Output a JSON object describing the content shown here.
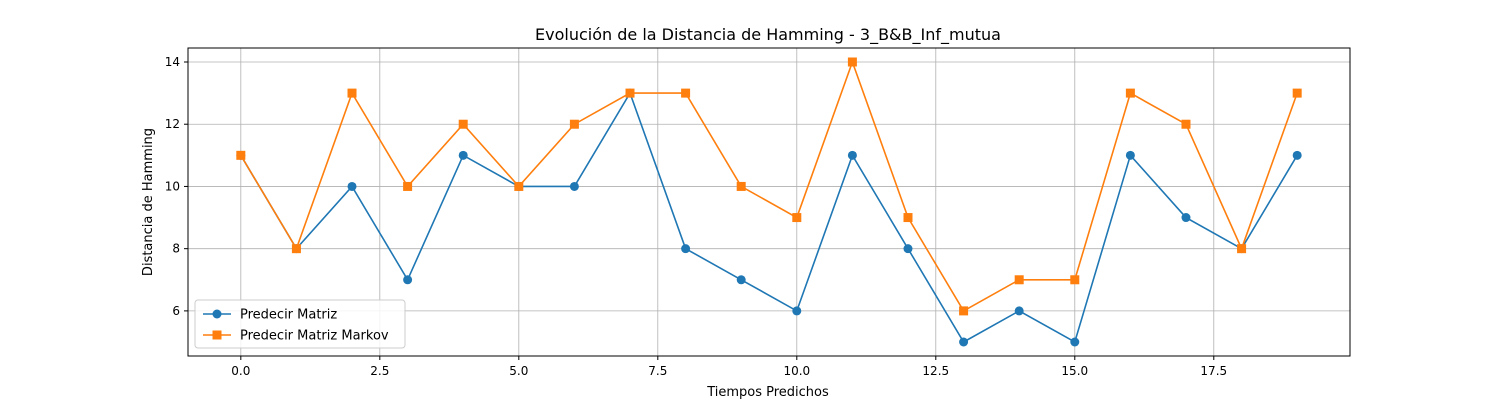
{
  "chart_data": {
    "type": "line",
    "title": "Evolución de la Distancia de Hamming - 3_B&B_Inf_mutua",
    "xlabel": "Tiempos Predichos",
    "ylabel": "Distancia de Hamming",
    "xlim": [
      -0.95,
      19.95
    ],
    "ylim": [
      4.55,
      14.45
    ],
    "xticks": [
      0.0,
      2.5,
      5.0,
      7.5,
      10.0,
      12.5,
      15.0,
      17.5
    ],
    "xtick_labels": [
      "0.0",
      "2.5",
      "5.0",
      "7.5",
      "10.0",
      "12.5",
      "15.0",
      "17.5"
    ],
    "yticks": [
      6,
      8,
      10,
      12,
      14
    ],
    "ytick_labels": [
      "6",
      "8",
      "10",
      "12",
      "14"
    ],
    "grid": true,
    "legend_position": "lower-left",
    "x": [
      0,
      1,
      2,
      3,
      4,
      5,
      6,
      7,
      8,
      9,
      10,
      11,
      12,
      13,
      14,
      15,
      16,
      17,
      18,
      19
    ],
    "series": [
      {
        "name": "Predecir Matriz",
        "color": "#1f77b4",
        "marker": "circle",
        "values": [
          11,
          8,
          10,
          7,
          11,
          10,
          10,
          13,
          8,
          7,
          6,
          11,
          8,
          5,
          6,
          5,
          11,
          9,
          8,
          11
        ]
      },
      {
        "name": "Predecir Matriz Markov",
        "color": "#ff7f0e",
        "marker": "square",
        "values": [
          11,
          8,
          13,
          10,
          12,
          10,
          12,
          13,
          13,
          10,
          9,
          14,
          9,
          6,
          7,
          7,
          13,
          12,
          8,
          13
        ]
      }
    ]
  }
}
